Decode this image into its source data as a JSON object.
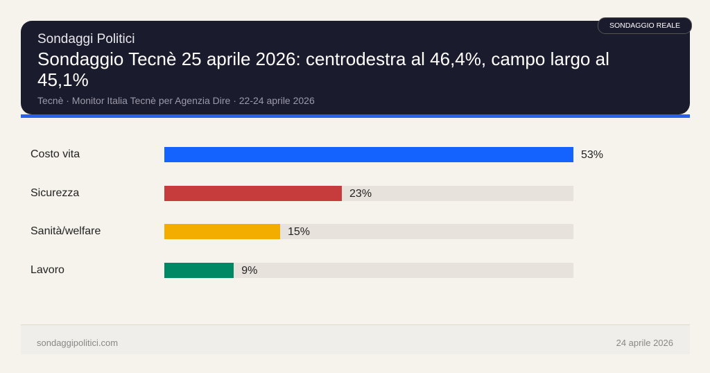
{
  "header": {
    "badge": "SONDAGGIO REALE",
    "brand": "Sondaggi Politici",
    "title": "Sondaggio Tecnè 25 aprile 2026: centrodestra al 46,4%, campo largo al 45,1%",
    "subtitle": "Tecnè · Monitor Italia Tecnè per Agenzia Dire · 22-24 aprile 2026",
    "accent_color": "#2563eb"
  },
  "chart_data": {
    "type": "bar",
    "orientation": "horizontal",
    "categories": [
      "Costo vita",
      "Sicurezza",
      "Sanità/welfare",
      "Lavoro"
    ],
    "values": [
      53,
      23,
      15,
      9
    ],
    "value_labels": [
      "53%",
      "23%",
      "15%",
      "9%"
    ],
    "colors": [
      "#1463ff",
      "#c63c3c",
      "#f2ad00",
      "#008763"
    ],
    "xlim": [
      0,
      53
    ],
    "grid": false
  },
  "footer": {
    "site": "sondaggipolitici.com",
    "date": "24 aprile 2026"
  }
}
